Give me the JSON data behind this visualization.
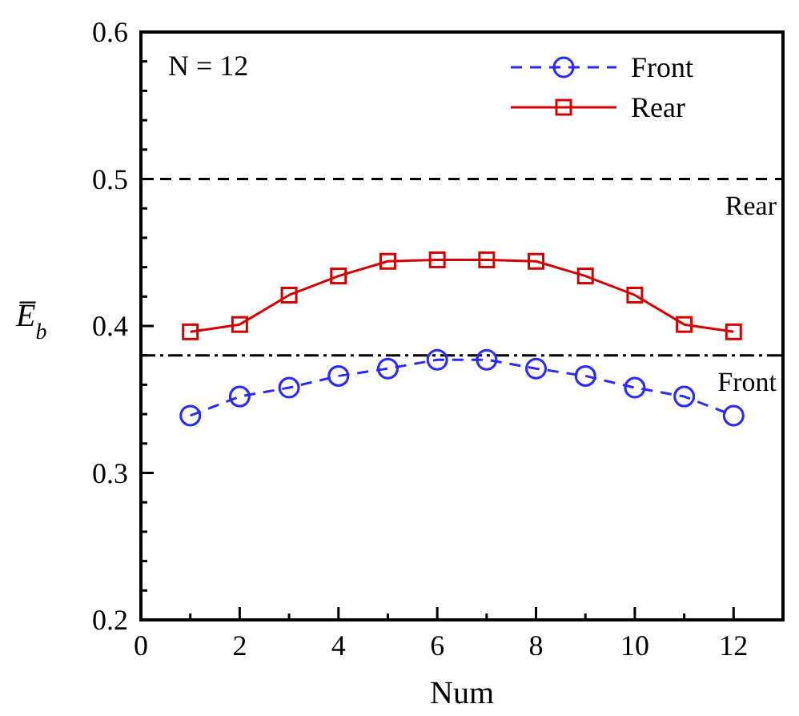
{
  "chart_data": {
    "type": "line",
    "xlabel": "Num",
    "ylabel": "E̅$_{b}$",
    "x": [
      1,
      2,
      3,
      4,
      5,
      6,
      7,
      8,
      9,
      10,
      11,
      12
    ],
    "series": [
      {
        "name": "Front",
        "color": "#2a2aff",
        "marker": "circle",
        "line_style": "dashed",
        "values": [
          0.339,
          0.352,
          0.358,
          0.366,
          0.371,
          0.377,
          0.377,
          0.371,
          0.366,
          0.358,
          0.352,
          0.339
        ]
      },
      {
        "name": "Rear",
        "color": "#d40000",
        "marker": "square",
        "line_style": "solid",
        "values": [
          0.396,
          0.401,
          0.421,
          0.434,
          0.444,
          0.445,
          0.445,
          0.444,
          0.434,
          0.421,
          0.401,
          0.396
        ]
      }
    ],
    "xlim": [
      0,
      13
    ],
    "xticks": [
      0,
      {
        "value": 1,
        "label": null
      },
      2,
      {
        "value": 3,
        "label": null
      },
      4,
      {
        "value": 5,
        "label": null
      },
      6,
      {
        "value": 7,
        "label": null
      },
      8,
      {
        "value": 9,
        "label": null
      },
      10,
      {
        "value": 11,
        "label": null
      },
      12
    ],
    "ylim": [
      0.2,
      0.6
    ],
    "yticks": [
      0.2,
      {
        "value": 0.22,
        "label": null
      },
      {
        "value": 0.24,
        "label": null
      },
      {
        "value": 0.26,
        "label": null
      },
      {
        "value": 0.28,
        "label": null
      },
      0.3,
      {
        "value": 0.32,
        "label": null
      },
      {
        "value": 0.34,
        "label": null
      },
      {
        "value": 0.36,
        "label": null
      },
      {
        "value": 0.38,
        "label": null
      },
      0.4,
      {
        "value": 0.42,
        "label": null
      },
      {
        "value": 0.44,
        "label": null
      },
      {
        "value": 0.46,
        "label": null
      },
      {
        "value": 0.48,
        "label": null
      },
      0.5,
      {
        "value": 0.52,
        "label": null
      },
      {
        "value": 0.54,
        "label": null
      },
      {
        "value": 0.56,
        "label": null
      },
      {
        "value": 0.58,
        "label": null
      },
      0.6
    ],
    "ref_lines": [
      {
        "axis": "y",
        "value": 0.5,
        "label": "Rear",
        "color": "#000000",
        "line_style": "dashed"
      },
      {
        "axis": "y",
        "value": 0.38,
        "label": "Front",
        "color": "#000000",
        "line_style": "dotted"
      }
    ],
    "annotations": [
      "N = 12"
    ],
    "legend": "top right",
    "grid": false
  }
}
